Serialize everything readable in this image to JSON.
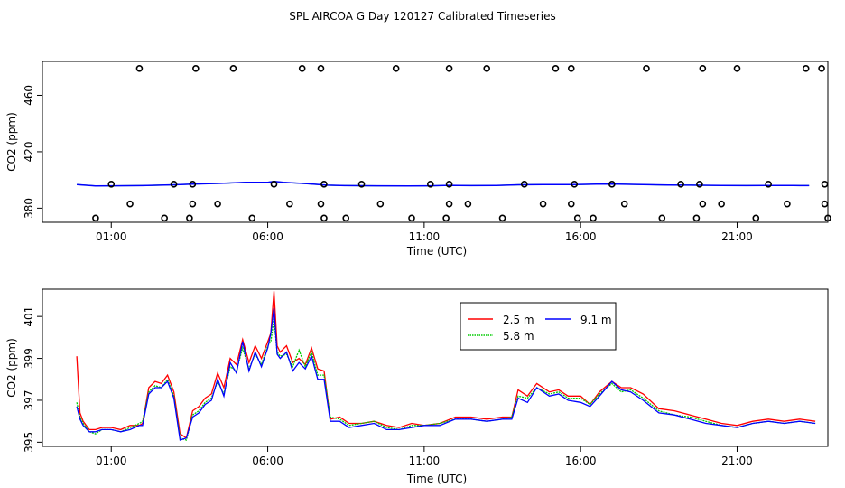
{
  "title": "SPL AIRCOA G  Day 120127  Calibrated Timeseries",
  "colors": {
    "s1": "#ff0000",
    "s2": "#00cc00",
    "s3": "#0000ff",
    "axis": "#000000"
  },
  "chart_data": [
    {
      "type": "line",
      "xlabel": "Time (UTC)",
      "ylabel": "CO2 (ppm)",
      "xlim": [
        -1.2,
        23.9
      ],
      "ylim": [
        370,
        484
      ],
      "xticks": [
        1,
        6,
        11,
        16,
        21
      ],
      "xtick_labels": [
        "01:00",
        "06:00",
        "11:00",
        "16:00",
        "21:00"
      ],
      "yticks": [
        380,
        420,
        460
      ],
      "ytick_labels": [
        "380",
        "420",
        "460"
      ],
      "grid": false,
      "line": {
        "x": [
          -0.1,
          0.5,
          1.0,
          2.0,
          3.0,
          3.6,
          4.5,
          5.3,
          6.0,
          6.2,
          6.5,
          7.2,
          7.9,
          8.5,
          9.5,
          10.5,
          11.2,
          11.8,
          12.5,
          13.3,
          14.0,
          14.8,
          15.8,
          16.5,
          17.2,
          18.0,
          18.8,
          19.5,
          20.5,
          21.3,
          22.0,
          22.8,
          23.0,
          23.3
        ],
        "values": [
          396.8,
          395.8,
          395.9,
          396.0,
          396.6,
          397.1,
          397.6,
          398.3,
          398.4,
          399.0,
          398.3,
          397.5,
          396.3,
          396.0,
          395.9,
          395.8,
          395.9,
          396.2,
          396.0,
          396.1,
          396.6,
          396.8,
          396.7,
          397.0,
          397.1,
          396.7,
          396.4,
          396.3,
          396.1,
          396.0,
          396.1,
          396.1,
          396.0,
          396.0
        ]
      },
      "markers": [
        {
          "x": 1.9,
          "y": 479
        },
        {
          "x": 3.7,
          "y": 479
        },
        {
          "x": 4.9,
          "y": 479
        },
        {
          "x": 7.1,
          "y": 479
        },
        {
          "x": 7.7,
          "y": 479
        },
        {
          "x": 10.1,
          "y": 479
        },
        {
          "x": 11.8,
          "y": 479
        },
        {
          "x": 13.0,
          "y": 479
        },
        {
          "x": 15.2,
          "y": 479
        },
        {
          "x": 15.7,
          "y": 479
        },
        {
          "x": 18.1,
          "y": 479
        },
        {
          "x": 19.9,
          "y": 479
        },
        {
          "x": 21.0,
          "y": 479
        },
        {
          "x": 23.2,
          "y": 479
        },
        {
          "x": 23.7,
          "y": 479
        },
        {
          "x": 1.0,
          "y": 397
        },
        {
          "x": 3.0,
          "y": 397
        },
        {
          "x": 3.6,
          "y": 397
        },
        {
          "x": 6.2,
          "y": 397
        },
        {
          "x": 7.8,
          "y": 397
        },
        {
          "x": 9.0,
          "y": 397
        },
        {
          "x": 11.2,
          "y": 397
        },
        {
          "x": 11.8,
          "y": 397
        },
        {
          "x": 14.2,
          "y": 397
        },
        {
          "x": 15.8,
          "y": 397
        },
        {
          "x": 17.0,
          "y": 397
        },
        {
          "x": 19.2,
          "y": 397
        },
        {
          "x": 19.8,
          "y": 397
        },
        {
          "x": 22.0,
          "y": 397
        },
        {
          "x": 23.8,
          "y": 397
        },
        {
          "x": 1.6,
          "y": 383
        },
        {
          "x": 3.6,
          "y": 383
        },
        {
          "x": 4.4,
          "y": 383
        },
        {
          "x": 6.7,
          "y": 383
        },
        {
          "x": 7.7,
          "y": 383
        },
        {
          "x": 9.6,
          "y": 383
        },
        {
          "x": 11.8,
          "y": 383
        },
        {
          "x": 12.4,
          "y": 383
        },
        {
          "x": 14.8,
          "y": 383
        },
        {
          "x": 15.7,
          "y": 383
        },
        {
          "x": 17.4,
          "y": 383
        },
        {
          "x": 19.9,
          "y": 383
        },
        {
          "x": 20.5,
          "y": 383
        },
        {
          "x": 22.6,
          "y": 383
        },
        {
          "x": 23.8,
          "y": 383
        },
        {
          "x": 0.5,
          "y": 373
        },
        {
          "x": 2.7,
          "y": 373
        },
        {
          "x": 3.5,
          "y": 373
        },
        {
          "x": 5.5,
          "y": 373
        },
        {
          "x": 7.8,
          "y": 373
        },
        {
          "x": 8.5,
          "y": 373
        },
        {
          "x": 10.6,
          "y": 373
        },
        {
          "x": 11.7,
          "y": 373
        },
        {
          "x": 13.5,
          "y": 373
        },
        {
          "x": 15.9,
          "y": 373
        },
        {
          "x": 16.4,
          "y": 373
        },
        {
          "x": 18.6,
          "y": 373
        },
        {
          "x": 19.7,
          "y": 373
        },
        {
          "x": 21.6,
          "y": 373
        },
        {
          "x": 23.9,
          "y": 373
        }
      ]
    },
    {
      "type": "line",
      "xlabel": "Time (UTC)",
      "ylabel": "CO2 (ppm)",
      "xlim": [
        -1.2,
        23.9
      ],
      "ylim": [
        394.8,
        402.3
      ],
      "xticks": [
        1,
        6,
        11,
        16,
        21
      ],
      "xtick_labels": [
        "01:00",
        "06:00",
        "11:00",
        "16:00",
        "21:00"
      ],
      "yticks": [
        395,
        397,
        399,
        401
      ],
      "ytick_labels": [
        "395",
        "397",
        "399",
        "401"
      ],
      "grid": false,
      "legend": {
        "placement": "top-right"
      },
      "x": [
        -0.1,
        0.0,
        0.1,
        0.3,
        0.5,
        0.7,
        1.0,
        1.3,
        1.6,
        1.9,
        2.0,
        2.2,
        2.4,
        2.6,
        2.8,
        3.0,
        3.2,
        3.4,
        3.6,
        3.8,
        4.0,
        4.2,
        4.4,
        4.6,
        4.8,
        5.0,
        5.2,
        5.4,
        5.6,
        5.8,
        6.0,
        6.1,
        6.2,
        6.3,
        6.4,
        6.6,
        6.8,
        7.0,
        7.2,
        7.4,
        7.6,
        7.8,
        8.0,
        8.3,
        8.6,
        9.0,
        9.4,
        9.8,
        10.2,
        10.6,
        11.0,
        11.5,
        12.0,
        12.5,
        13.0,
        13.5,
        13.8,
        14.0,
        14.3,
        14.6,
        15.0,
        15.3,
        15.6,
        16.0,
        16.3,
        16.6,
        17.0,
        17.3,
        17.6,
        18.0,
        18.5,
        19.0,
        19.5,
        20.0,
        20.5,
        21.0,
        21.5,
        22.0,
        22.5,
        23.0,
        23.5
      ],
      "series": [
        {
          "name": "2.5 m",
          "color": "#ff0000",
          "values": [
            399.1,
            396.4,
            396.0,
            395.6,
            395.6,
            395.7,
            395.7,
            395.6,
            395.8,
            395.8,
            395.9,
            397.6,
            397.9,
            397.8,
            398.2,
            397.4,
            395.4,
            395.2,
            396.5,
            396.7,
            397.1,
            397.3,
            398.3,
            397.6,
            399.0,
            398.7,
            399.9,
            398.8,
            399.6,
            399.0,
            399.8,
            400.2,
            402.2,
            399.6,
            399.3,
            399.6,
            398.8,
            399.0,
            398.7,
            399.5,
            398.5,
            398.4,
            396.1,
            396.2,
            395.9,
            395.9,
            396.0,
            395.8,
            395.7,
            395.9,
            395.8,
            395.9,
            396.2,
            396.2,
            396.1,
            396.2,
            396.2,
            397.5,
            397.2,
            397.8,
            397.4,
            397.5,
            397.2,
            397.2,
            396.8,
            397.4,
            397.9,
            397.6,
            397.6,
            397.3,
            396.6,
            396.5,
            396.3,
            396.1,
            395.9,
            395.8,
            396.0,
            396.1,
            396.0,
            396.1,
            396.0
          ]
        },
        {
          "name": "5.8 m",
          "color": "#00cc00",
          "values": [
            396.9,
            396.2,
            395.9,
            395.5,
            395.4,
            395.6,
            395.6,
            395.5,
            395.7,
            395.9,
            396.0,
            397.4,
            397.7,
            397.6,
            398.0,
            397.2,
            395.2,
            395.1,
            396.3,
            396.5,
            396.9,
            397.1,
            397.9,
            397.3,
            398.6,
            398.4,
            399.5,
            398.5,
            399.2,
            398.7,
            399.6,
            399.8,
            400.9,
            399.3,
            399.1,
            399.2,
            398.6,
            399.4,
            398.6,
            399.3,
            398.2,
            398.2,
            396.2,
            396.1,
            395.8,
            395.9,
            396.0,
            395.7,
            395.6,
            395.8,
            395.8,
            395.9,
            396.1,
            396.1,
            396.0,
            396.1,
            396.2,
            397.2,
            397.1,
            397.6,
            397.3,
            397.4,
            397.1,
            397.1,
            396.8,
            397.3,
            397.8,
            397.4,
            397.5,
            397.1,
            396.5,
            396.3,
            396.2,
            396.0,
            395.8,
            395.7,
            395.9,
            396.0,
            395.9,
            396.0,
            395.9
          ]
        },
        {
          "name": "9.1 m",
          "color": "#0000ff",
          "values": [
            396.7,
            396.1,
            395.8,
            395.5,
            395.5,
            395.6,
            395.6,
            395.5,
            395.6,
            395.8,
            395.8,
            397.3,
            397.6,
            397.6,
            397.9,
            397.1,
            395.1,
            395.2,
            396.2,
            396.4,
            396.8,
            397.0,
            398.0,
            397.2,
            398.8,
            398.3,
            399.8,
            398.4,
            399.3,
            398.6,
            399.5,
            400.2,
            401.4,
            399.2,
            399.0,
            399.3,
            398.4,
            398.8,
            398.5,
            399.1,
            398.0,
            398.0,
            396.0,
            396.0,
            395.7,
            395.8,
            395.9,
            395.6,
            395.6,
            395.7,
            395.8,
            395.8,
            396.1,
            396.1,
            396.0,
            396.1,
            396.1,
            397.1,
            396.9,
            397.6,
            397.2,
            397.3,
            397.0,
            396.9,
            396.7,
            397.2,
            397.9,
            397.5,
            397.4,
            397.0,
            396.4,
            396.3,
            396.1,
            395.9,
            395.8,
            395.7,
            395.9,
            396.0,
            395.9,
            396.0,
            395.9
          ]
        }
      ]
    }
  ]
}
